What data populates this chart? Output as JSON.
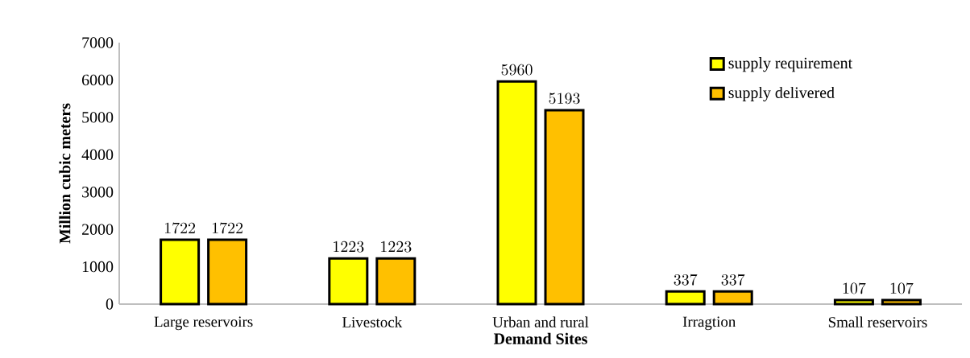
{
  "chart_data": {
    "type": "bar",
    "xlabel": "Demand Sites",
    "ylabel": "Million cubic meters",
    "categories": [
      "Large reservoirs",
      "Livestock",
      "Urban and rural",
      "Irragtion",
      "Small reservoirs"
    ],
    "series": [
      {
        "name": "supply requirement",
        "color": "#ffff00",
        "values": [
          1722,
          1223,
          5960,
          337,
          107
        ]
      },
      {
        "name": "supply delivered",
        "color": "#ffc000",
        "values": [
          1722,
          1223,
          5193,
          337,
          107
        ]
      }
    ],
    "ylim": [
      0,
      7000
    ],
    "yticks": [
      0,
      1000,
      2000,
      3000,
      4000,
      5000,
      6000,
      7000
    ],
    "data_labels": true,
    "legend": "top right"
  }
}
